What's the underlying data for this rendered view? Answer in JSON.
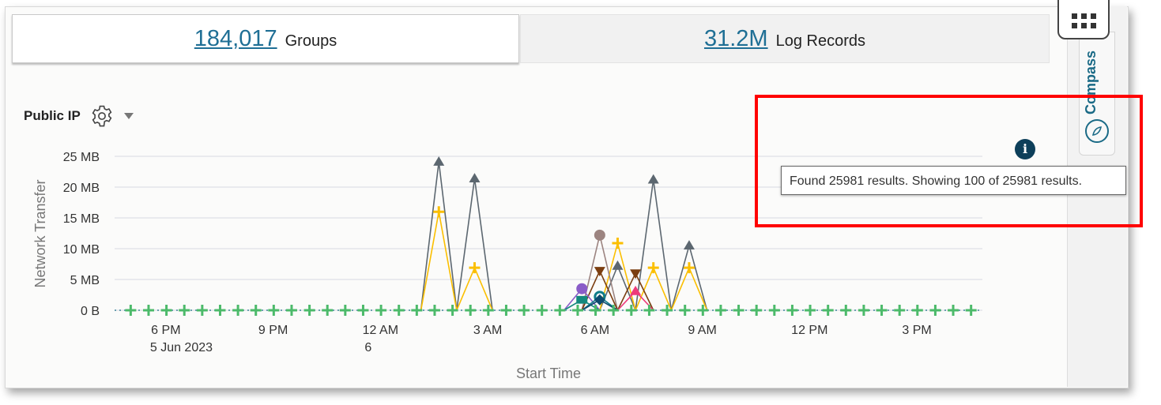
{
  "summary_tabs": [
    {
      "value": "184,017",
      "label": "Groups"
    },
    {
      "value": "31.2M",
      "label": "Log Records"
    }
  ],
  "chart_header": {
    "title": "Public IP",
    "settings_icon": "gear-icon",
    "menu_icon": "caret-down-icon"
  },
  "side_panel": {
    "compass_label": "Compass",
    "compass_icon": "compass-icon",
    "apps_icon": "grid-icon"
  },
  "info_icon": "info-icon",
  "tooltip": "Found 25981 results. Showing 100 of 25981 results.",
  "highlight_color": "#ff0000",
  "chart_data": {
    "type": "line",
    "xlabel": "Start Time",
    "ylabel": "Network Transfer",
    "xlim": [
      "2023-06-05T16:34",
      "2023-06-06T16:50"
    ],
    "ylim": [
      0,
      25
    ],
    "x_ticks": [
      {
        "t": "2023-06-05T18:00",
        "label": "6 PM",
        "sub": "5 Jun 2023"
      },
      {
        "t": "2023-06-05T21:00",
        "label": "9 PM",
        "sub": ""
      },
      {
        "t": "2023-06-06T00:00",
        "label": "12 AM",
        "sub": "6"
      },
      {
        "t": "2023-06-06T03:00",
        "label": "3 AM",
        "sub": ""
      },
      {
        "t": "2023-06-06T06:00",
        "label": "6 AM",
        "sub": ""
      },
      {
        "t": "2023-06-06T09:00",
        "label": "9 AM",
        "sub": ""
      },
      {
        "t": "2023-06-06T12:00",
        "label": "12 PM",
        "sub": ""
      },
      {
        "t": "2023-06-06T15:00",
        "label": "3 PM",
        "sub": ""
      }
    ],
    "y_ticks": [
      {
        "v": 0,
        "label": "0 B"
      },
      {
        "v": 5,
        "label": "5 MB"
      },
      {
        "v": 10,
        "label": "10 MB"
      },
      {
        "v": 15,
        "label": "15 MB"
      },
      {
        "v": 20,
        "label": "20 MB"
      },
      {
        "v": 25,
        "label": "25 MB"
      }
    ],
    "grid": true,
    "series": [
      {
        "color": "#5c6770",
        "marker": "triangle-up",
        "points": [
          [
            "2023-06-06T01:38",
            24.1
          ],
          [
            "2023-06-06T02:38",
            21.4
          ],
          [
            "2023-06-06T06:38",
            7.2
          ],
          [
            "2023-06-06T07:38",
            21.2
          ],
          [
            "2023-06-06T08:38",
            10.5
          ]
        ]
      },
      {
        "color": "#fbbf00",
        "marker": "plus",
        "points": [
          [
            "2023-06-06T01:38",
            16.0
          ],
          [
            "2023-06-06T02:38",
            6.9
          ],
          [
            "2023-06-06T06:38",
            10.9
          ],
          [
            "2023-06-06T07:38",
            6.9
          ],
          [
            "2023-06-06T08:38",
            6.9
          ]
        ]
      },
      {
        "color": "#9c8480",
        "marker": "circle",
        "points": [
          [
            "2023-06-06T06:08",
            12.2
          ]
        ]
      },
      {
        "color": "#7b3e10",
        "marker": "triangle-down",
        "points": [
          [
            "2023-06-06T06:08",
            6.4
          ],
          [
            "2023-06-06T07:08",
            6.0
          ]
        ]
      },
      {
        "color": "#8a5cc8",
        "marker": "circle",
        "points": [
          [
            "2023-06-06T05:38",
            3.5
          ]
        ]
      },
      {
        "color": "#13897e",
        "marker": "square",
        "points": [
          [
            "2023-06-06T05:38",
            1.7
          ]
        ]
      },
      {
        "color": "#0f7d8a",
        "marker": "ring",
        "points": [
          [
            "2023-06-06T06:08",
            2.2
          ]
        ]
      },
      {
        "color": "#0d4a6e",
        "marker": "diamond",
        "points": [
          [
            "2023-06-06T06:08",
            1.7
          ]
        ]
      },
      {
        "color": "#ee3a7a",
        "marker": "triangle-up",
        "points": [
          [
            "2023-06-06T07:08",
            3.1
          ]
        ]
      },
      {
        "color": "#4cba6a",
        "marker": "plus",
        "baseline": true,
        "points": []
      }
    ]
  }
}
